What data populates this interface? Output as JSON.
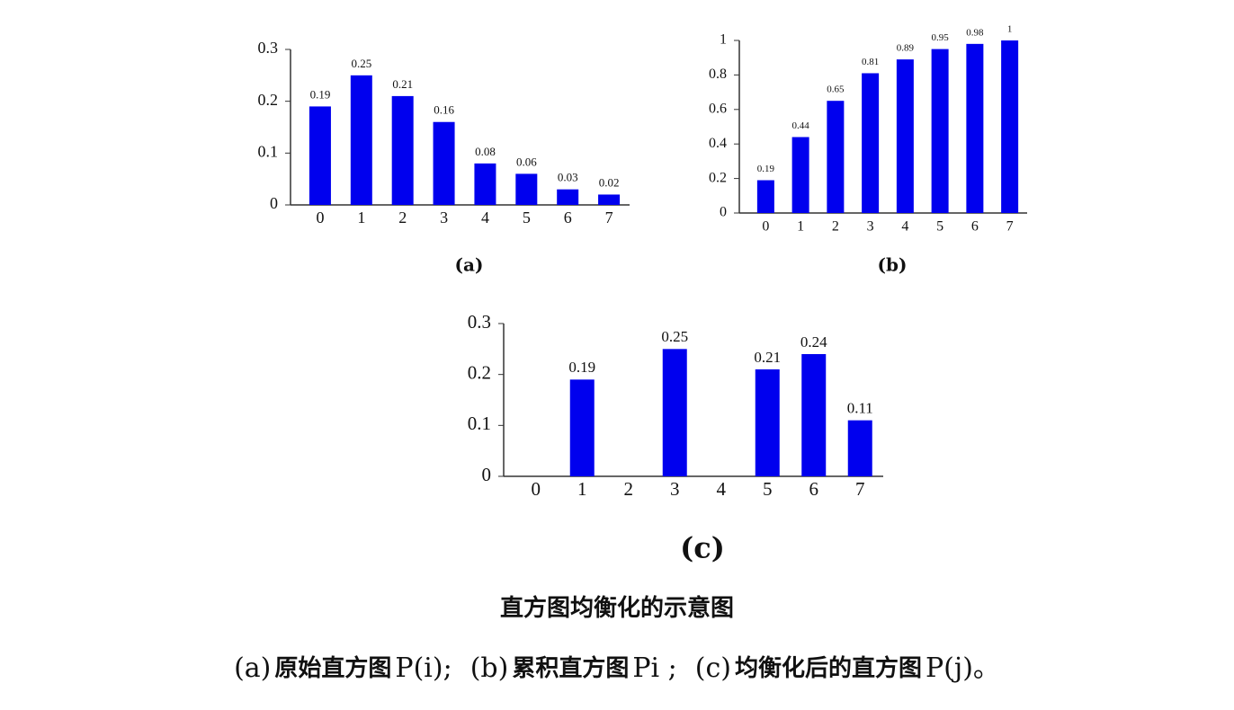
{
  "chart_data": [
    {
      "type": "bar",
      "caption": "(a)",
      "categories": [
        "0",
        "1",
        "2",
        "3",
        "4",
        "5",
        "6",
        "7"
      ],
      "values": [
        0.19,
        0.25,
        0.21,
        0.16,
        0.08,
        0.06,
        0.03,
        0.02
      ],
      "color": "#0000ee",
      "ylim": [
        0,
        0.3
      ],
      "yticks": [
        0,
        0.1,
        0.2,
        0.3
      ]
    },
    {
      "type": "bar",
      "caption": "(b)",
      "categories": [
        "0",
        "1",
        "2",
        "3",
        "4",
        "5",
        "6",
        "7"
      ],
      "values": [
        0.19,
        0.44,
        0.65,
        0.81,
        0.89,
        0.95,
        0.98,
        1
      ],
      "color": "#0000ee",
      "ylim": [
        0,
        1
      ],
      "yticks": [
        0,
        0.2,
        0.4,
        0.6,
        0.8,
        1
      ]
    },
    {
      "type": "bar",
      "caption": "(c)",
      "categories": [
        "0",
        "1",
        "2",
        "3",
        "4",
        "5",
        "6",
        "7"
      ],
      "values": [
        null,
        0.19,
        null,
        0.25,
        null,
        0.21,
        0.24,
        0.11
      ],
      "color": "#0000ee",
      "ylim": [
        0,
        0.3
      ],
      "yticks": [
        0,
        0.1,
        0.2,
        0.3
      ]
    }
  ],
  "figure_title": "直方图均衡化的示意图",
  "figure_caption": [
    "(a)",
    "原始直方图",
    "P(i);",
    "(b)",
    "累积直方图",
    "Pi ;",
    "(c)",
    "均衡化后的直方图",
    "P(j)。"
  ]
}
